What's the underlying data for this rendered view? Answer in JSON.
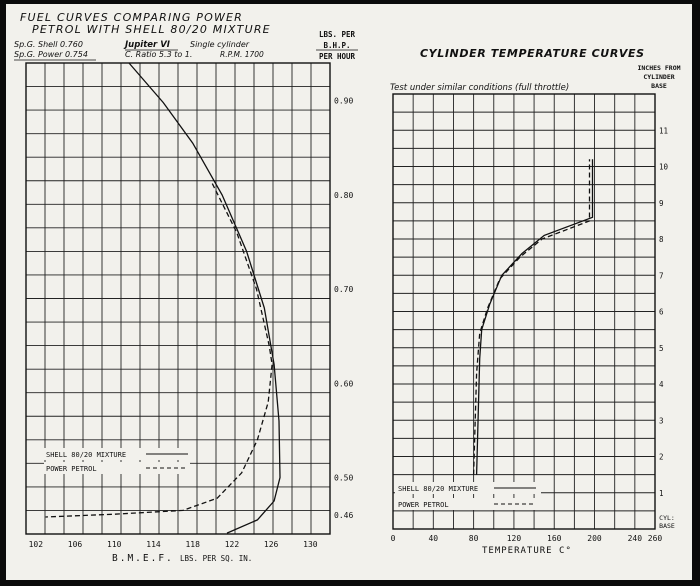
{
  "header": {
    "title_line1": "FUEL CURVES COMPARING POWER",
    "title_line2": "PETROL WITH SHELL 80/20 MIXTURE",
    "spec_shell": "Sp.G. Shell 0.760",
    "spec_power": "Sp.G. Power 0.754",
    "engine": "Jupiter VI",
    "engine_type": "Single cylinder",
    "ratio": "C. Ratio 5.3 to 1.",
    "rpm": "R.P.M. 1700"
  },
  "chart_data": [
    {
      "type": "line",
      "title": "FUEL CURVES COMPARING POWER PETROL WITH SHELL 80/20 MIXTURE",
      "xlabel": "B.M.E.F.",
      "xlabel_units": "LBS. PER SQ. IN.",
      "ylabel": [
        "LBS. PER",
        "B.H.P.",
        "PER HOUR"
      ],
      "xlim": [
        101,
        132
      ],
      "ylim": [
        0.44,
        0.94
      ],
      "x_ticks": [
        102,
        106,
        110,
        114,
        118,
        122,
        126,
        130
      ],
      "y_ticks": [
        {
          "value": 0.46,
          "label": "0.46"
        },
        {
          "value": 0.5,
          "label": "0.50"
        },
        {
          "value": 0.6,
          "label": "0.60"
        },
        {
          "value": 0.7,
          "label": "0.70"
        },
        {
          "value": 0.8,
          "label": "0.80"
        },
        {
          "value": 0.9,
          "label": "0.90"
        }
      ],
      "grid": true,
      "legend_position": "bottom-left",
      "series": [
        {
          "name": "SHELL 80/20 MIXTURE",
          "style": "solid",
          "points": [
            [
              111.5,
              0.94
            ],
            [
              115,
              0.898
            ],
            [
              118,
              0.855
            ],
            [
              121,
              0.8
            ],
            [
              123.5,
              0.74
            ],
            [
              125.3,
              0.68
            ],
            [
              126.3,
              0.62
            ],
            [
              126.8,
              0.56
            ],
            [
              126.9,
              0.5
            ],
            [
              126.3,
              0.475
            ],
            [
              124.6,
              0.455
            ],
            [
              121.5,
              0.441
            ]
          ]
        },
        {
          "name": "POWER PETROL",
          "style": "dashed",
          "points": [
            [
              120,
              0.812
            ],
            [
              122.5,
              0.76
            ],
            [
              124.5,
              0.7
            ],
            [
              125.8,
              0.64
            ],
            [
              126.1,
              0.62
            ],
            [
              125.7,
              0.58
            ],
            [
              124.6,
              0.54
            ],
            [
              123,
              0.505
            ],
            [
              120.5,
              0.478
            ],
            [
              117,
              0.465
            ],
            [
              110,
              0.461
            ],
            [
              103,
              0.458
            ]
          ]
        }
      ]
    },
    {
      "type": "line",
      "title": "CYLINDER TEMPERATURE CURVES",
      "subtitle": "Test under similar conditions (full throttle)",
      "xlabel": "TEMPERATURE C°",
      "ylabel": [
        "INCHES FROM",
        "CYLINDER",
        "BASE"
      ],
      "y_base_label": [
        "CYL:",
        "BASE"
      ],
      "xlim": [
        0,
        260
      ],
      "ylim": [
        0,
        12
      ],
      "x_ticks": [
        0,
        40,
        80,
        120,
        160,
        200,
        240,
        260
      ],
      "y_ticks": [
        1,
        2,
        3,
        4,
        5,
        6,
        7,
        8,
        9,
        10,
        11
      ],
      "grid": true,
      "legend_position": "bottom-left",
      "series": [
        {
          "name": "SHELL 80/20 MIXTURE",
          "style": "solid",
          "points": [
            [
              83,
              1.5
            ],
            [
              86,
              4.7
            ],
            [
              88,
              5.5
            ],
            [
              96,
              6.2
            ],
            [
              108,
              7.0
            ],
            [
              128,
              7.6
            ],
            [
              150,
              8.1
            ],
            [
              198,
              8.6
            ],
            [
              198,
              10.2
            ]
          ]
        },
        {
          "name": "POWER PETROL",
          "style": "dashed",
          "points": [
            [
              80,
              1.5
            ],
            [
              83,
              4.3
            ],
            [
              86,
              5.4
            ],
            [
              94,
              6.1
            ],
            [
              106,
              6.9
            ],
            [
              126,
              7.5
            ],
            [
              148,
              8.0
            ],
            [
              195,
              8.5
            ],
            [
              195,
              10.2
            ]
          ]
        }
      ]
    }
  ]
}
